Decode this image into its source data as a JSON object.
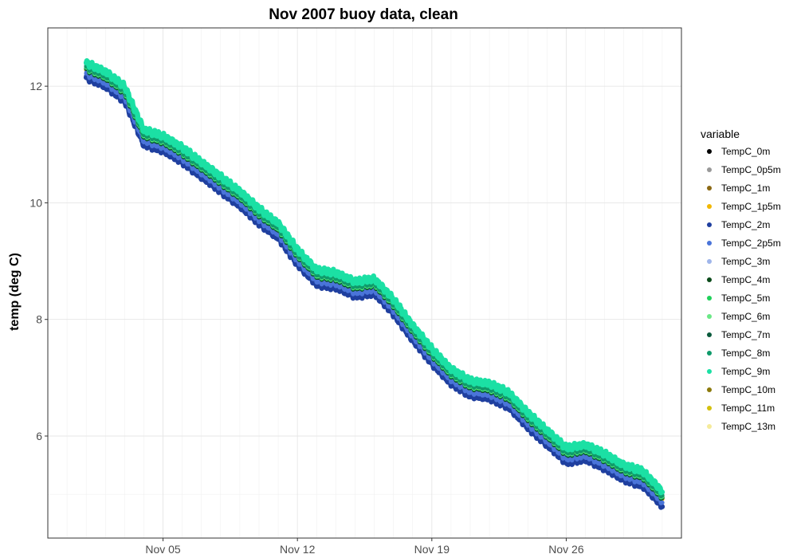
{
  "chart_data": {
    "type": "scatter",
    "title": "Nov 2007 buoy data, clean",
    "xlabel": "",
    "ylabel": "temp (deg C)",
    "x_tick_labels": [
      "Nov 05",
      "Nov 12",
      "Nov 19",
      "Nov 26"
    ],
    "x_tick_dates": [
      "2007-11-05",
      "2007-11-12",
      "2007-11-19",
      "2007-11-26"
    ],
    "xlim": [
      "2007-10-30",
      "2007-12-02"
    ],
    "y_ticks": [
      6,
      8,
      10,
      12
    ],
    "ylim": [
      4.25,
      13.0
    ],
    "grid": true,
    "legend_title": "variable",
    "legend_position": "right",
    "profile": [
      {
        "x": "2007-11-01",
        "y": 12.3
      },
      {
        "x": "2007-11-02",
        "y": 12.15
      },
      {
        "x": "2007-11-03",
        "y": 11.9
      },
      {
        "x": "2007-11-04",
        "y": 11.15
      },
      {
        "x": "2007-11-05",
        "y": 11.05
      },
      {
        "x": "2007-11-06",
        "y": 10.85
      },
      {
        "x": "2007-11-07",
        "y": 10.6
      },
      {
        "x": "2007-11-08",
        "y": 10.35
      },
      {
        "x": "2007-11-09",
        "y": 10.1
      },
      {
        "x": "2007-11-10",
        "y": 9.8
      },
      {
        "x": "2007-11-11",
        "y": 9.55
      },
      {
        "x": "2007-11-12",
        "y": 9.1
      },
      {
        "x": "2007-11-13",
        "y": 8.75
      },
      {
        "x": "2007-11-14",
        "y": 8.7
      },
      {
        "x": "2007-11-15",
        "y": 8.55
      },
      {
        "x": "2007-11-16",
        "y": 8.6
      },
      {
        "x": "2007-11-17",
        "y": 8.25
      },
      {
        "x": "2007-11-18",
        "y": 7.8
      },
      {
        "x": "2007-11-19",
        "y": 7.4
      },
      {
        "x": "2007-11-20",
        "y": 7.05
      },
      {
        "x": "2007-11-21",
        "y": 6.85
      },
      {
        "x": "2007-11-22",
        "y": 6.8
      },
      {
        "x": "2007-11-23",
        "y": 6.65
      },
      {
        "x": "2007-11-24",
        "y": 6.3
      },
      {
        "x": "2007-11-25",
        "y": 6.0
      },
      {
        "x": "2007-11-26",
        "y": 5.7
      },
      {
        "x": "2007-11-27",
        "y": 5.75
      },
      {
        "x": "2007-11-28",
        "y": 5.6
      },
      {
        "x": "2007-11-29",
        "y": 5.4
      },
      {
        "x": "2007-11-30",
        "y": 5.3
      },
      {
        "x": "2007-12-01",
        "y": 4.95
      }
    ],
    "series": [
      {
        "name": "TempC_0m",
        "color": "#000000",
        "offset": 0.0
      },
      {
        "name": "TempC_0p5m",
        "color": "#999999",
        "offset": 0.02
      },
      {
        "name": "TempC_1m",
        "color": "#8B6914",
        "offset": 0.0
      },
      {
        "name": "TempC_1p5m",
        "color": "#F2B701",
        "offset": -0.02
      },
      {
        "name": "TempC_2m",
        "color": "#1F3F9F",
        "offset": -0.15
      },
      {
        "name": "TempC_2p5m",
        "color": "#4A74D9",
        "offset": -0.08
      },
      {
        "name": "TempC_3m",
        "color": "#9FB5EA",
        "offset": 0.05
      },
      {
        "name": "TempC_4m",
        "color": "#0B4A1A",
        "offset": 0.0
      },
      {
        "name": "TempC_5m",
        "color": "#1FD15A",
        "offset": 0.02
      },
      {
        "name": "TempC_6m",
        "color": "#6AE886",
        "offset": 0.03
      },
      {
        "name": "TempC_7m",
        "color": "#0A5A3C",
        "offset": 0.01
      },
      {
        "name": "TempC_8m",
        "color": "#0F9A6A",
        "offset": 0.04
      },
      {
        "name": "TempC_9m",
        "color": "#1BE0A4",
        "offset": 0.1
      },
      {
        "name": "TempC_10m",
        "color": "#8C7A0C",
        "offset": 0.0
      },
      {
        "name": "TempC_11m",
        "color": "#D4C10E",
        "offset": 0.01
      },
      {
        "name": "TempC_13m",
        "color": "#F5EB9A",
        "offset": 0.02
      }
    ],
    "draw_order": [
      "TempC_13m",
      "TempC_11m",
      "TempC_10m",
      "TempC_0m",
      "TempC_0p5m",
      "TempC_3m",
      "TempC_1m",
      "TempC_1p5m",
      "TempC_2m",
      "TempC_2p5m",
      "TempC_4m",
      "TempC_7m",
      "TempC_5m",
      "TempC_6m",
      "TempC_8m",
      "TempC_9m"
    ]
  }
}
